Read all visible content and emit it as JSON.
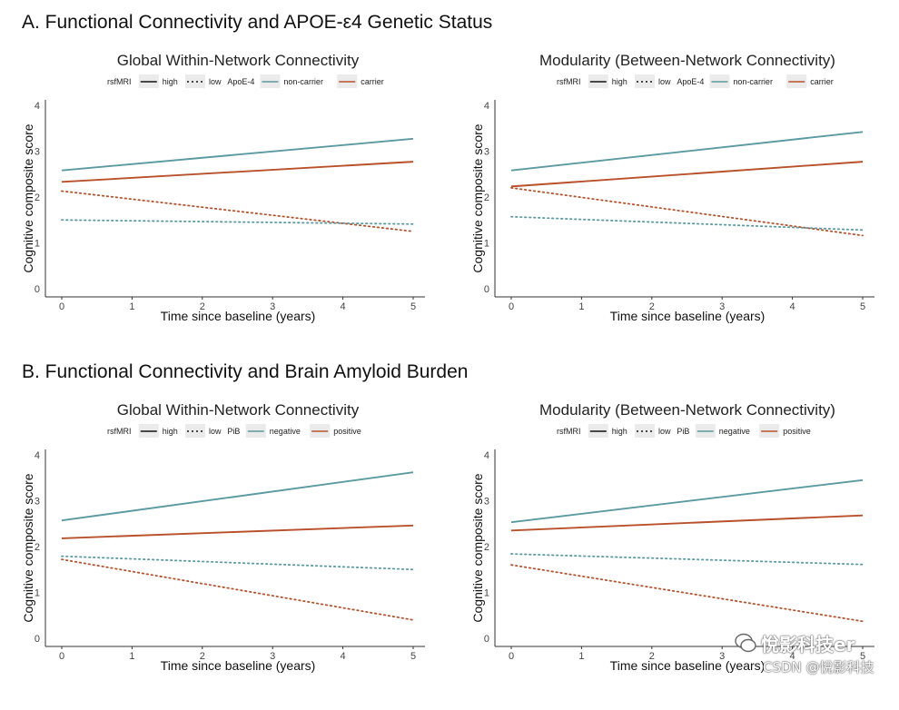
{
  "sections": [
    {
      "title": "A. Functional Connectivity and APOE-ε4 Genetic Status"
    },
    {
      "title": "B. Functional Connectivity and Brain Amyloid Burden"
    }
  ],
  "colors": {
    "teal": "#5b9aa0",
    "rust": "#b8512b",
    "axis": "#333333"
  },
  "watermark": {
    "brand": "悅影科技er",
    "site": "CSDN @悅影科技"
  },
  "chart_data": [
    {
      "type": "line",
      "title": "Global Within-Network Connectivity",
      "xlabel": "Time since baseline (years)",
      "ylabel": "Cognitive composite score",
      "xlim": [
        0,
        5
      ],
      "ylim": [
        0,
        4
      ],
      "x_ticks": [
        "0",
        "1",
        "2",
        "3",
        "4",
        "5"
      ],
      "y_ticks": [
        "0",
        "1",
        "2",
        "3",
        "4"
      ],
      "legend": {
        "factor1": "rsfMRI",
        "high": "high",
        "low": "low",
        "factor2": "ApoE-4",
        "group1": "non-carrier",
        "group2": "carrier"
      },
      "series": [
        {
          "name": "high non-carrier",
          "style": "solid",
          "color": "teal",
          "x": [
            0,
            5
          ],
          "y": [
            2.58,
            3.27
          ]
        },
        {
          "name": "high carrier",
          "style": "solid",
          "color": "rust",
          "x": [
            0,
            5
          ],
          "y": [
            2.33,
            2.77
          ]
        },
        {
          "name": "low carrier",
          "style": "dotted",
          "color": "rust",
          "x": [
            0,
            5
          ],
          "y": [
            2.13,
            1.25
          ]
        },
        {
          "name": "low non-carrier",
          "style": "dotted",
          "color": "teal",
          "x": [
            0,
            5
          ],
          "y": [
            1.5,
            1.41
          ]
        }
      ]
    },
    {
      "type": "line",
      "title": "Modularity (Between-Network Connectivity)",
      "xlabel": "Time since baseline (years)",
      "ylabel": "Cognitive composite score",
      "xlim": [
        0,
        5
      ],
      "ylim": [
        0,
        4
      ],
      "x_ticks": [
        "0",
        "1",
        "2",
        "3",
        "4",
        "5"
      ],
      "y_ticks": [
        "0",
        "1",
        "2",
        "3",
        "4"
      ],
      "legend": {
        "factor1": "rsfMRI",
        "high": "high",
        "low": "low",
        "factor2": "ApoE-4",
        "group1": "non-carrier",
        "group2": "carrier"
      },
      "series": [
        {
          "name": "high non-carrier",
          "style": "solid",
          "color": "teal",
          "x": [
            0,
            5
          ],
          "y": [
            2.58,
            3.42
          ]
        },
        {
          "name": "high carrier",
          "style": "solid",
          "color": "rust",
          "x": [
            0,
            5
          ],
          "y": [
            2.23,
            2.77
          ]
        },
        {
          "name": "low carrier",
          "style": "dotted",
          "color": "rust",
          "x": [
            0,
            5
          ],
          "y": [
            2.2,
            1.16
          ]
        },
        {
          "name": "low non-carrier",
          "style": "dotted",
          "color": "teal",
          "x": [
            0,
            5
          ],
          "y": [
            1.57,
            1.28
          ]
        }
      ]
    },
    {
      "type": "line",
      "title": "Global Within-Network Connectivity",
      "xlabel": "Time since baseline (years)",
      "ylabel": "Cognitive composite score",
      "xlim": [
        0,
        5
      ],
      "ylim": [
        0,
        4
      ],
      "x_ticks": [
        "0",
        "1",
        "2",
        "3",
        "4",
        "5"
      ],
      "y_ticks": [
        "0",
        "1",
        "2",
        "3",
        "4"
      ],
      "legend": {
        "factor1": "rsfMRI",
        "high": "high",
        "low": "low",
        "factor2": "PiB",
        "group1": "negative",
        "group2": "positive"
      },
      "series": [
        {
          "name": "high negative",
          "style": "solid",
          "color": "teal",
          "x": [
            0,
            5
          ],
          "y": [
            2.57,
            3.62
          ]
        },
        {
          "name": "high positive",
          "style": "solid",
          "color": "rust",
          "x": [
            0,
            5
          ],
          "y": [
            2.18,
            2.46
          ]
        },
        {
          "name": "low negative",
          "style": "dotted",
          "color": "teal",
          "x": [
            0,
            5
          ],
          "y": [
            1.79,
            1.5
          ]
        },
        {
          "name": "low positive",
          "style": "dotted",
          "color": "rust",
          "x": [
            0,
            5
          ],
          "y": [
            1.72,
            0.4
          ]
        }
      ]
    },
    {
      "type": "line",
      "title": "Modularity (Between-Network Connectivity)",
      "xlabel": "Time since baseline (years)",
      "ylabel": "Cognitive composite score",
      "xlim": [
        0,
        5
      ],
      "ylim": [
        0,
        4
      ],
      "x_ticks": [
        "0",
        "1",
        "2",
        "3",
        "4",
        "5"
      ],
      "y_ticks": [
        "0",
        "1",
        "2",
        "3",
        "4"
      ],
      "legend": {
        "factor1": "rsfMRI",
        "high": "high",
        "low": "low",
        "factor2": "PiB",
        "group1": "negative",
        "group2": "positive"
      },
      "series": [
        {
          "name": "high negative",
          "style": "solid",
          "color": "teal",
          "x": [
            0,
            5
          ],
          "y": [
            2.53,
            3.45
          ]
        },
        {
          "name": "high positive",
          "style": "solid",
          "color": "rust",
          "x": [
            0,
            5
          ],
          "y": [
            2.35,
            2.68
          ]
        },
        {
          "name": "low negative",
          "style": "dotted",
          "color": "teal",
          "x": [
            0,
            5
          ],
          "y": [
            1.84,
            1.61
          ]
        },
        {
          "name": "low positive",
          "style": "dotted",
          "color": "rust",
          "x": [
            0,
            5
          ],
          "y": [
            1.6,
            0.37
          ]
        }
      ]
    }
  ]
}
